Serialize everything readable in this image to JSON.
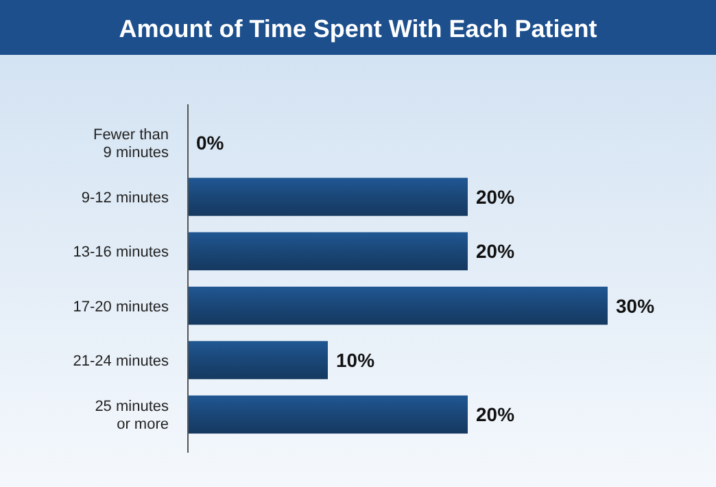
{
  "chart_data": {
    "type": "bar",
    "orientation": "horizontal",
    "title": "Amount of Time Spent With Each Patient",
    "categories": [
      "Fewer than 9 minutes",
      "9-12 minutes",
      "13-16 minutes",
      "17-20 minutes",
      "21-24 minutes",
      "25 minutes or more"
    ],
    "values": [
      0,
      20,
      20,
      30,
      10,
      20
    ],
    "value_labels": [
      "0%",
      "20%",
      "20%",
      "30%",
      "10%",
      "20%"
    ],
    "color": "#1a4677"
  }
}
